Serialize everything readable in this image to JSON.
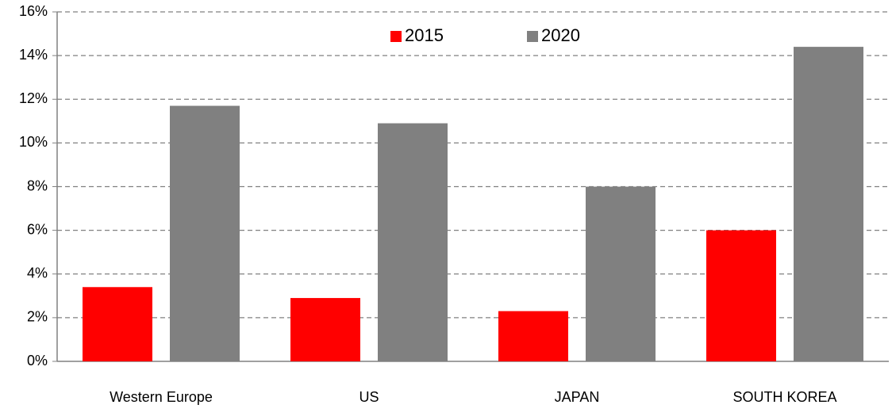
{
  "chart_data": {
    "type": "bar",
    "categories": [
      "Western Europe",
      "US",
      "JAPAN",
      "SOUTH KOREA"
    ],
    "series": [
      {
        "name": "2015",
        "color": "#ff0000",
        "values": [
          3.4,
          2.9,
          2.3,
          6.0
        ]
      },
      {
        "name": "2020",
        "color": "#808080",
        "values": [
          11.7,
          10.9,
          8.0,
          14.4
        ]
      }
    ],
    "ylim": [
      0,
      16
    ],
    "yticks": [
      {
        "value": 0,
        "label": "0%"
      },
      {
        "value": 2,
        "label": "2%"
      },
      {
        "value": 4,
        "label": "4%"
      },
      {
        "value": 6,
        "label": "6%"
      },
      {
        "value": 8,
        "label": "8%"
      },
      {
        "value": 10,
        "label": "10%"
      },
      {
        "value": 12,
        "label": "12%"
      },
      {
        "value": 14,
        "label": "14%"
      },
      {
        "value": 16,
        "label": "16%"
      }
    ],
    "grid": true,
    "legend": "upper center"
  }
}
